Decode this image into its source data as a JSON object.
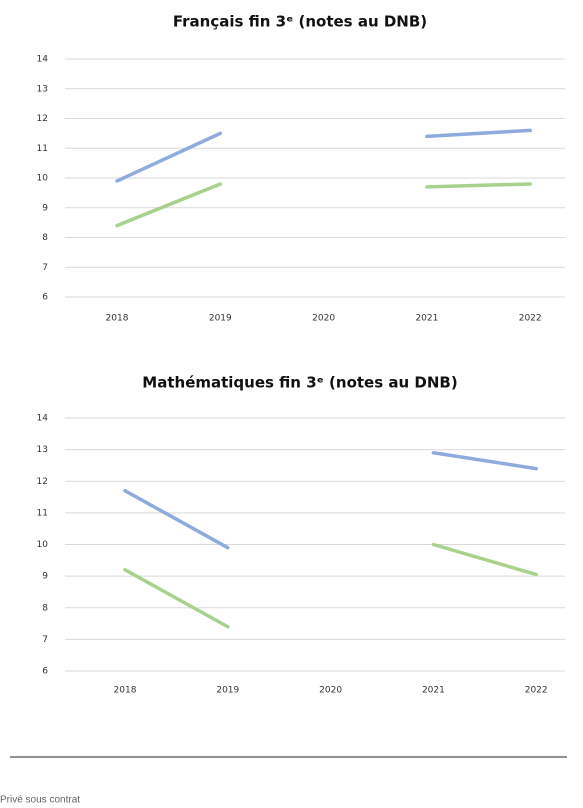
{
  "chart_data": [
    {
      "type": "line",
      "title": "Français fin 3ᵉ (notes au DNB)",
      "categories": [
        "2018",
        "2019",
        "2020",
        "2021",
        "2022"
      ],
      "series": [
        {
          "color": "#8faadc",
          "values": [
            9.9,
            11.5,
            null,
            11.4,
            11.6
          ]
        },
        {
          "color": "#a9d18e",
          "values": [
            8.4,
            9.8,
            null,
            9.7,
            9.8
          ]
        }
      ],
      "ylim": [
        6,
        14
      ],
      "yticks": [
        6,
        7,
        8,
        9,
        10,
        11,
        12,
        13,
        14
      ],
      "grid": true
    },
    {
      "type": "line",
      "title": "Mathématiques fin 3ᵉ (notes au DNB)",
      "categories": [
        "2018",
        "2019",
        "2020",
        "2021",
        "2022"
      ],
      "series": [
        {
          "color": "#8faadc",
          "values": [
            11.7,
            9.9,
            null,
            12.9,
            12.4
          ]
        },
        {
          "color": "#a9d18e",
          "values": [
            9.2,
            7.4,
            null,
            10.0,
            9.05
          ]
        }
      ],
      "ylim": [
        6,
        14
      ],
      "yticks": [
        6,
        7,
        8,
        9,
        10,
        11,
        12,
        13,
        14
      ],
      "grid": true
    }
  ],
  "footer": "Privé sous contrat"
}
